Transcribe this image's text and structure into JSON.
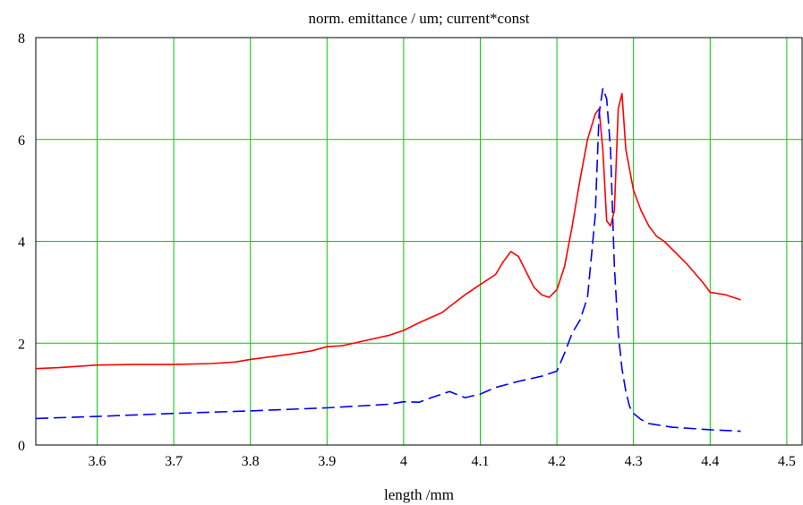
{
  "chart_data": {
    "type": "line",
    "title": "norm. emittance / um;  current*const",
    "xlabel": "length /mm",
    "ylabel": "",
    "xlim": [
      3.52,
      4.52
    ],
    "ylim": [
      0,
      8
    ],
    "x_ticks": [
      "3.6",
      "3.7",
      "3.8",
      "3.9",
      "4",
      "4.1",
      "4.2",
      "4.3",
      "4.4",
      "4.5"
    ],
    "y_ticks": [
      "0",
      "2",
      "4",
      "6",
      "8"
    ],
    "grid": true,
    "grid_color": "#00cc00",
    "series": [
      {
        "style": "solid",
        "color": "#ff0000",
        "x": [
          3.52,
          3.55,
          3.6,
          3.65,
          3.7,
          3.75,
          3.78,
          3.8,
          3.82,
          3.85,
          3.88,
          3.9,
          3.92,
          3.95,
          3.98,
          4.0,
          4.02,
          4.05,
          4.08,
          4.1,
          4.12,
          4.13,
          4.14,
          4.15,
          4.16,
          4.17,
          4.18,
          4.19,
          4.2,
          4.21,
          4.22,
          4.23,
          4.24,
          4.25,
          4.255,
          4.26,
          4.265,
          4.27,
          4.275,
          4.28,
          4.285,
          4.29,
          4.3,
          4.31,
          4.32,
          4.33,
          4.34,
          4.35,
          4.37,
          4.39,
          4.4,
          4.42,
          4.44
        ],
        "values": [
          1.5,
          1.52,
          1.57,
          1.58,
          1.58,
          1.6,
          1.63,
          1.68,
          1.72,
          1.78,
          1.85,
          1.93,
          1.95,
          2.05,
          2.15,
          2.25,
          2.4,
          2.6,
          2.95,
          3.15,
          3.35,
          3.6,
          3.8,
          3.7,
          3.4,
          3.1,
          2.95,
          2.9,
          3.05,
          3.5,
          4.3,
          5.2,
          6.0,
          6.5,
          6.6,
          5.8,
          4.4,
          4.3,
          4.6,
          6.6,
          6.9,
          5.8,
          5.0,
          4.6,
          4.3,
          4.1,
          4.0,
          3.85,
          3.55,
          3.2,
          3.0,
          2.95,
          2.85
        ]
      },
      {
        "style": "dashed",
        "color": "#0000ff",
        "x": [
          3.52,
          3.6,
          3.7,
          3.8,
          3.9,
          3.98,
          4.0,
          4.02,
          4.04,
          4.06,
          4.08,
          4.1,
          4.12,
          4.15,
          4.18,
          4.2,
          4.21,
          4.22,
          4.23,
          4.24,
          4.25,
          4.255,
          4.26,
          4.265,
          4.27,
          4.275,
          4.28,
          4.285,
          4.29,
          4.295,
          4.3,
          4.31,
          4.32,
          4.35,
          4.4,
          4.44
        ],
        "values": [
          0.52,
          0.56,
          0.62,
          0.67,
          0.73,
          0.8,
          0.85,
          0.84,
          0.95,
          1.05,
          0.93,
          1.0,
          1.13,
          1.25,
          1.35,
          1.45,
          1.8,
          2.2,
          2.45,
          2.9,
          4.5,
          6.5,
          7.0,
          6.8,
          5.8,
          3.5,
          2.2,
          1.5,
          1.05,
          0.75,
          0.62,
          0.5,
          0.42,
          0.35,
          0.3,
          0.27
        ]
      }
    ]
  }
}
